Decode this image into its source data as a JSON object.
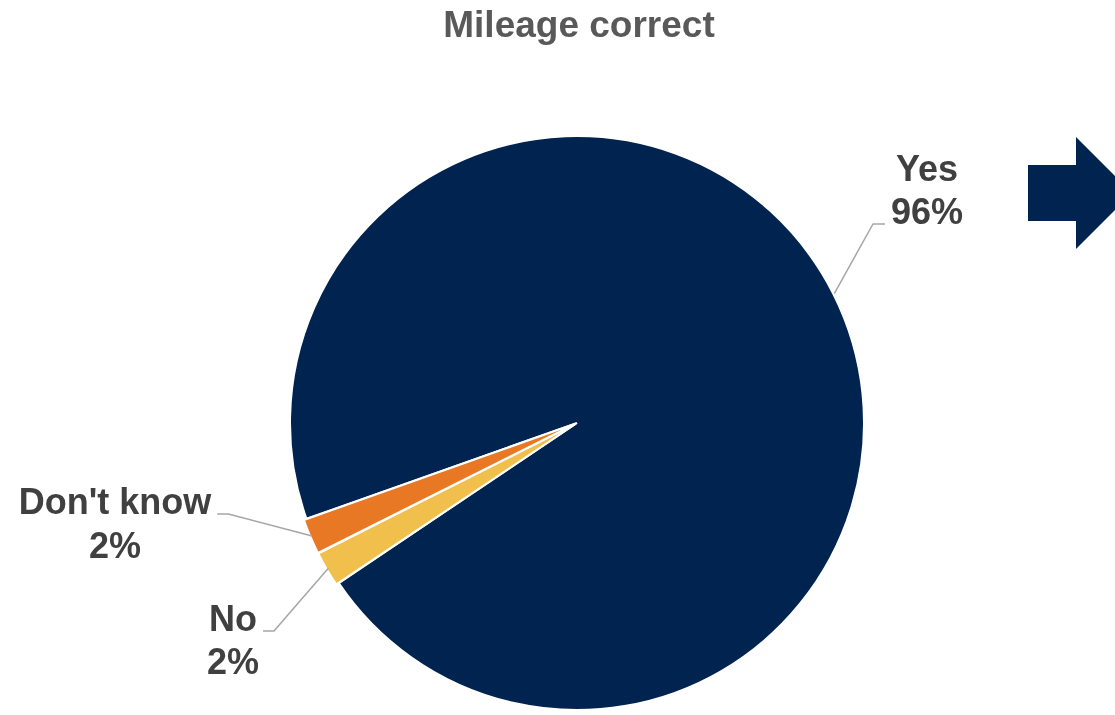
{
  "chart_data": {
    "type": "pie",
    "title": "Mileage correct",
    "categories": [
      "Yes",
      "No",
      "Don't know"
    ],
    "values": [
      96,
      2,
      2
    ],
    "colors": [
      "#00234f",
      "#f1bf4b",
      "#e87823"
    ],
    "value_labels": [
      "96%",
      "2%",
      "2%"
    ],
    "legend": false
  }
}
